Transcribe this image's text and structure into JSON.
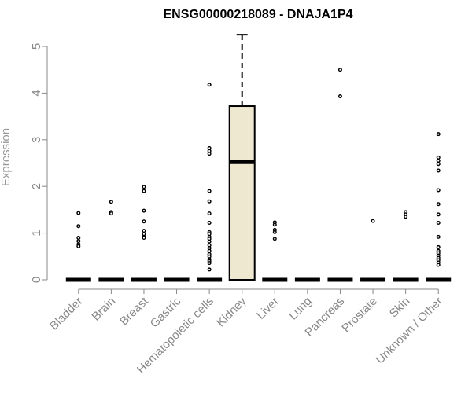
{
  "chart_data": {
    "type": "box",
    "title": "ENSG00000218089 - DNAJA1P4",
    "xlabel": "",
    "ylabel": "Expression",
    "ylim": [
      0,
      5.25
    ],
    "yticks": [
      0,
      1,
      2,
      3,
      4,
      5
    ],
    "categories": [
      "Bladder",
      "Brain",
      "Breast",
      "Gastric",
      "Hematopoietic cells",
      "Kidney",
      "Liver",
      "Lung",
      "Pancreas",
      "Prostate",
      "Skin",
      "Unknown / Other"
    ],
    "box_fill_color": "#efe8d0",
    "boxes": [
      {
        "category": "Bladder",
        "min": 0,
        "q1": 0,
        "median": 0,
        "q3": 0,
        "max": 0,
        "outliers": [
          1.43,
          1.15,
          0.9,
          0.83,
          0.76,
          0.72
        ]
      },
      {
        "category": "Brain",
        "min": 0,
        "q1": 0,
        "median": 0,
        "q3": 0,
        "max": 0,
        "outliers": [
          1.67,
          1.45,
          1.42
        ]
      },
      {
        "category": "Breast",
        "min": 0,
        "q1": 0,
        "median": 0,
        "q3": 0,
        "max": 0,
        "outliers": [
          1.99,
          1.9,
          1.48,
          1.25,
          1.05,
          0.98,
          0.92,
          0.9
        ]
      },
      {
        "category": "Gastric",
        "min": 0,
        "q1": 0,
        "median": 0,
        "q3": 0,
        "max": 0,
        "outliers": []
      },
      {
        "category": "Hematopoietic cells",
        "min": 0,
        "q1": 0,
        "median": 0,
        "q3": 0,
        "max": 0,
        "outliers": [
          4.18,
          2.82,
          2.76,
          2.7,
          1.9,
          1.68,
          1.42,
          1.22,
          1.02,
          0.98,
          0.92,
          0.88,
          0.82,
          0.74,
          0.68,
          0.62,
          0.55,
          0.5,
          0.44,
          0.4,
          0.36,
          0.22
        ]
      },
      {
        "category": "Kidney",
        "min": 0,
        "q1": 0,
        "median": 2.52,
        "q3": 3.72,
        "max": 5.25,
        "outliers": []
      },
      {
        "category": "Liver",
        "min": 0,
        "q1": 0,
        "median": 0,
        "q3": 0,
        "max": 0,
        "outliers": [
          1.23,
          1.18,
          1.07,
          1.02,
          0.88
        ]
      },
      {
        "category": "Lung",
        "min": 0,
        "q1": 0,
        "median": 0,
        "q3": 0,
        "max": 0,
        "outliers": []
      },
      {
        "category": "Pancreas",
        "min": 0,
        "q1": 0,
        "median": 0,
        "q3": 0,
        "max": 0,
        "outliers": [
          4.5,
          3.93
        ]
      },
      {
        "category": "Prostate",
        "min": 0,
        "q1": 0,
        "median": 0,
        "q3": 0,
        "max": 0,
        "outliers": [
          1.26
        ]
      },
      {
        "category": "Skin",
        "min": 0,
        "q1": 0,
        "median": 0,
        "q3": 0,
        "max": 0,
        "outliers": [
          1.45,
          1.4,
          1.35
        ]
      },
      {
        "category": "Unknown / Other",
        "min": 0,
        "q1": 0,
        "median": 0,
        "q3": 0,
        "max": 0,
        "outliers": [
          3.12,
          2.62,
          2.55,
          2.48,
          2.34,
          1.92,
          1.62,
          1.4,
          1.22,
          0.92,
          0.7,
          0.62,
          0.57,
          0.52,
          0.47,
          0.42,
          0.37,
          0.32
        ]
      }
    ]
  }
}
